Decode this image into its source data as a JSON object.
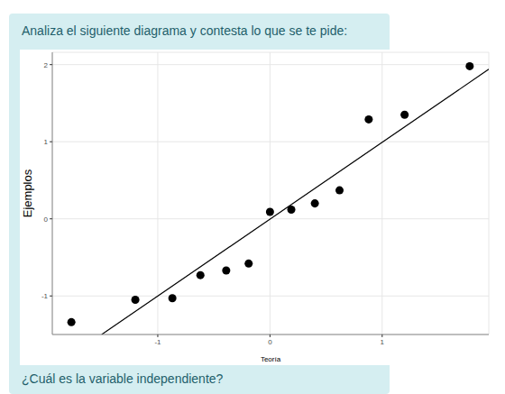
{
  "instruction": "Analiza el siguiente diagrama y contesta lo que se te pide:",
  "question": "¿Cuál es la variable independiente?",
  "chart_data": {
    "type": "scatter",
    "x_label": "Teoría",
    "y_label": "Ejemplos",
    "xlim": [
      -1.94,
      1.95
    ],
    "ylim": [
      -1.5,
      2.16
    ],
    "xticks": [
      -1,
      0,
      1
    ],
    "yticks": [
      -1,
      0,
      1,
      2
    ],
    "grid": true,
    "series": [
      {
        "type": "scatter",
        "marker": "circle",
        "color": "#000000",
        "x": [
          -1.77,
          -1.2,
          -0.87,
          -0.62,
          -0.39,
          -0.19,
          0,
          0.19,
          0.4,
          0.62,
          0.88,
          1.2,
          1.78
        ],
        "values": [
          -1.34,
          -1.05,
          -1.03,
          -0.73,
          -0.67,
          -0.58,
          0.09,
          0.12,
          0.2,
          0.37,
          1.29,
          1.35,
          1.98
        ]
      },
      {
        "type": "line",
        "line_style": "solid",
        "color": "#000000",
        "x": [
          -1.5,
          1.95
        ],
        "values": [
          -1.5,
          1.94
        ]
      }
    ]
  }
}
